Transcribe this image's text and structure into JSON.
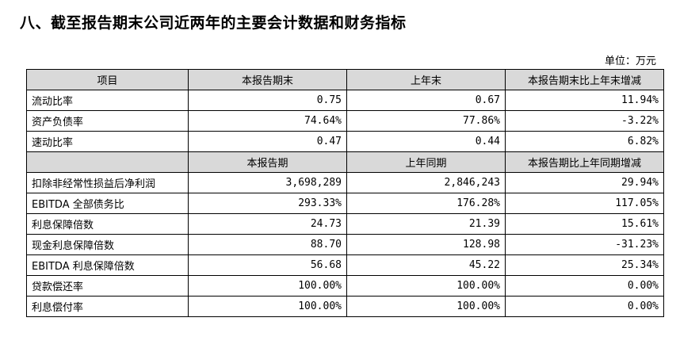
{
  "title": "八、截至报告期末公司近两年的主要会计数据和财务指标",
  "unit": "单位：万元",
  "header1": [
    "项目",
    "本报告期末",
    "上年末",
    "本报告期末比上年末增减"
  ],
  "section1": [
    {
      "label": "流动比率",
      "current": "0.75",
      "prior": "0.67",
      "change": "11.94%"
    },
    {
      "label": "资产负债率",
      "current": "74.64%",
      "prior": "77.86%",
      "change": "-3.22%"
    },
    {
      "label": "速动比率",
      "current": "0.47",
      "prior": "0.44",
      "change": "6.82%"
    }
  ],
  "header2": [
    "本报告期",
    "上年同期",
    "本报告期比上年同期增减"
  ],
  "section2": [
    {
      "label": "扣除非经常性损益后净利润",
      "current": "3,698,289",
      "prior": "2,846,243",
      "change": "29.94%"
    },
    {
      "label": "EBITDA 全部债务比",
      "current": "293.33%",
      "prior": "176.28%",
      "change": "117.05%"
    },
    {
      "label": "利息保障倍数",
      "current": "24.73",
      "prior": "21.39",
      "change": "15.61%"
    },
    {
      "label": "现金利息保障倍数",
      "current": "88.70",
      "prior": "128.98",
      "change": "-31.23%"
    },
    {
      "label": "EBITDA 利息保障倍数",
      "current": "56.68",
      "prior": "45.22",
      "change": "25.34%"
    },
    {
      "label": "贷款偿还率",
      "current": "100.00%",
      "prior": "100.00%",
      "change": "0.00%"
    },
    {
      "label": "利息偿付率",
      "current": "100.00%",
      "prior": "100.00%",
      "change": "0.00%"
    }
  ]
}
